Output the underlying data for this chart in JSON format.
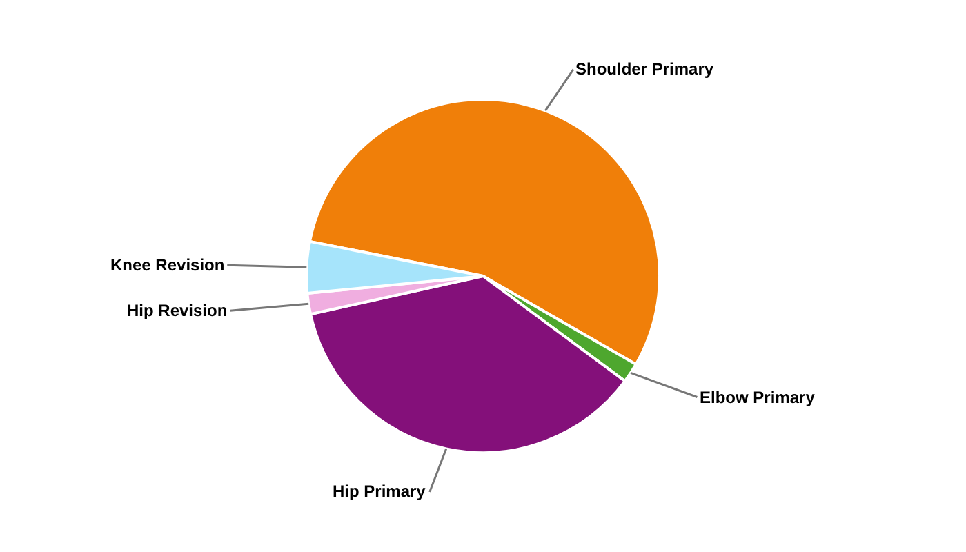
{
  "chart_data": {
    "type": "pie",
    "categories": [
      "Shoulder Primary",
      "Elbow Primary",
      "Hip Primary",
      "Hip Revision",
      "Knee Revision"
    ],
    "values": [
      55.2,
      1.8,
      36.4,
      1.9,
      4.7
    ],
    "colors": [
      "#f07f09",
      "#4ea72e",
      "#84107a",
      "#f0aee0",
      "#a6e4fb"
    ],
    "legend": false
  }
}
